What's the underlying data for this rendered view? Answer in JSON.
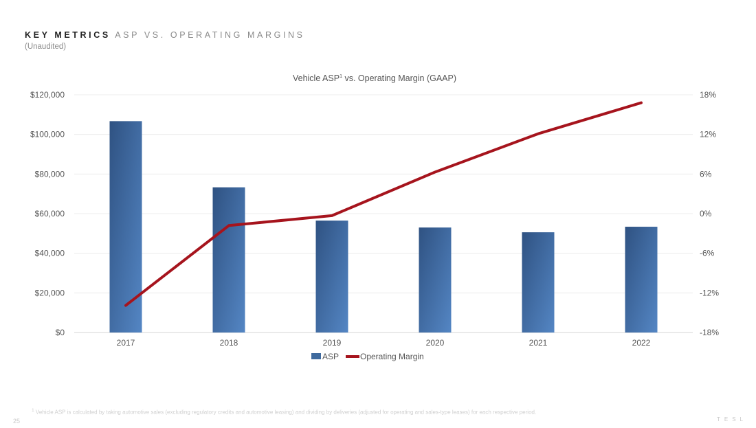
{
  "header": {
    "title_bold": "KEY METRICS",
    "title_light": "ASP VS. OPERATING MARGINS",
    "subtitle": "(Unaudited)"
  },
  "chart_data": {
    "type": "bar",
    "title": "Vehicle ASP",
    "title_superscript": "1",
    "title_suffix": " vs. Operating Margin (GAAP)",
    "categories": [
      "2017",
      "2018",
      "2019",
      "2020",
      "2021",
      "2022"
    ],
    "series": [
      {
        "name": "ASP",
        "type": "bar",
        "axis": "left",
        "color": "#3f6a9e",
        "values": [
          106700,
          73300,
          56500,
          53000,
          50600,
          53400
        ]
      },
      {
        "name": "Operating Margin",
        "type": "line",
        "axis": "right",
        "color": "#a6141d",
        "values": [
          -13.9,
          -1.8,
          -0.3,
          6.3,
          12.1,
          16.8
        ]
      }
    ],
    "y_left": {
      "ylim": [
        0,
        120000
      ],
      "ticks": [
        0,
        20000,
        40000,
        60000,
        80000,
        100000,
        120000
      ],
      "tick_labels": [
        "$0",
        "$20,000",
        "$40,000",
        "$60,000",
        "$80,000",
        "$100,000",
        "$120,000"
      ]
    },
    "y_right": {
      "ylim": [
        -18,
        18
      ],
      "ticks": [
        -18,
        -12,
        -6,
        0,
        6,
        12,
        18
      ],
      "tick_labels": [
        "-18%",
        "-12%",
        "-6%",
        "0%",
        "6%",
        "12%",
        "18%"
      ]
    },
    "grid": true,
    "legend": "bottom-center"
  },
  "footer": {
    "footnote_mark": "1",
    "footnote": " Vehicle ASP is calculated by taking automotive sales (excluding regulatory credits and automotive leasing) and dividing by deliveries (adjusted for operating and sales-type leases) for each respective period.",
    "page_number": "25",
    "brand": "TESL"
  }
}
